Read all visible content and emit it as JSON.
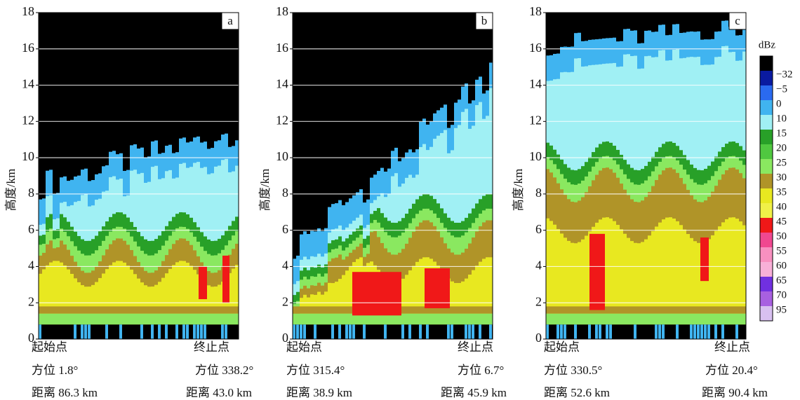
{
  "panels": [
    {
      "label": "a",
      "y_axis_label": "高度/km",
      "ylim": [
        0,
        18
      ],
      "yticks": [
        0,
        2,
        4,
        6,
        8,
        10,
        12,
        14,
        16,
        18
      ],
      "start": "起始点",
      "end": "终止点",
      "start_azimuth": "方位 1.8°",
      "end_azimuth": "方位 338.2°",
      "start_distance": "距离 86.3 km",
      "end_distance": "距离 43.0 km"
    },
    {
      "label": "b",
      "y_axis_label": "高度/km",
      "ylim": [
        0,
        18
      ],
      "yticks": [
        0,
        2,
        4,
        6,
        8,
        10,
        12,
        14,
        16,
        18
      ],
      "start": "起始点",
      "end": "终止点",
      "start_azimuth": "方位 315.4°",
      "end_azimuth": "方位 6.7°",
      "start_distance": "距离 38.9 km",
      "end_distance": "距离 45.9 km"
    },
    {
      "label": "c",
      "y_axis_label": "高度/km",
      "ylim": [
        0,
        18
      ],
      "yticks": [
        0,
        2,
        4,
        6,
        8,
        10,
        12,
        14,
        16,
        18
      ],
      "start": "起始点",
      "end": "终止点",
      "start_azimuth": "方位 330.5°",
      "end_azimuth": "方位 20.4°",
      "start_distance": "距离 52.6 km",
      "end_distance": "距离 90.4 km"
    }
  ],
  "colorbar": {
    "title": "dBz",
    "labels": [
      {
        "value": -32,
        "label": "−32"
      },
      {
        "value": -5,
        "label": "−5"
      },
      0,
      10,
      15,
      20,
      25,
      30,
      35,
      40,
      45,
      50,
      55,
      60,
      65,
      70,
      95
    ],
    "colors": [
      "#000000",
      "#0a1aa0",
      "#2a6af0",
      "#40b4f0",
      "#a0f0f4",
      "#28a028",
      "#50c840",
      "#8ae860",
      "#b09428",
      "#e8e820",
      "#f0f048",
      "#f01818",
      "#f04890",
      "#f890c0",
      "#f8b0d8",
      "#7030e0",
      "#a860e0",
      "#d8c0f0"
    ]
  }
}
